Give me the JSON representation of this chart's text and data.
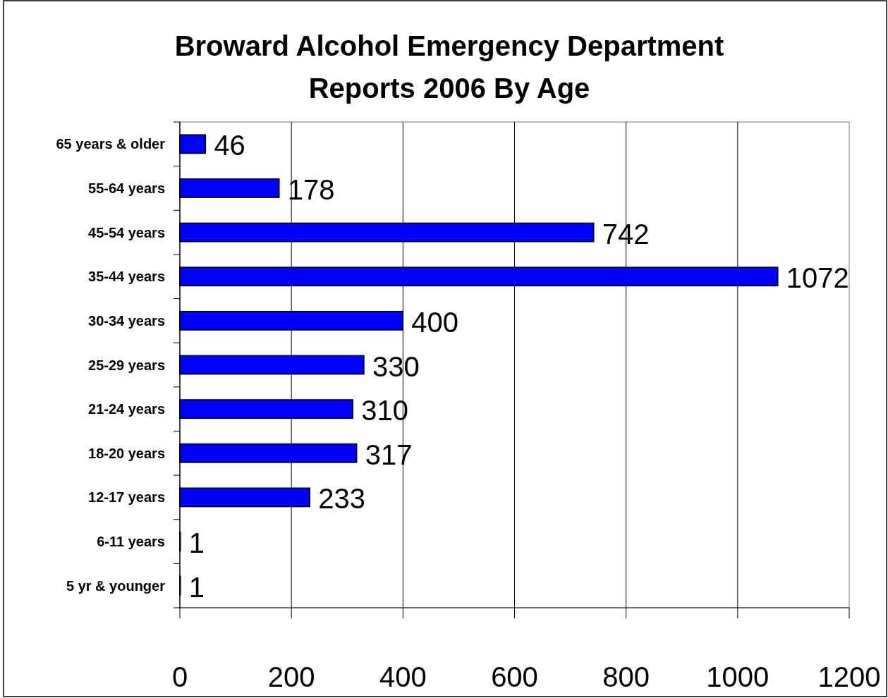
{
  "chart_data": {
    "type": "bar",
    "orientation": "horizontal",
    "title": "Broward Alcohol Emergency Department Reports 2006 By Age",
    "categories": [
      "65 years & older",
      "55-64 years",
      "45-54 years",
      "35-44 years",
      "30-34 years",
      "25-29 years",
      "21-24 years",
      "18-20 years",
      "12-17 years",
      "6-11 years",
      "5 yr & younger"
    ],
    "values": [
      46,
      178,
      742,
      1072,
      400,
      330,
      310,
      317,
      233,
      1,
      1
    ],
    "color": "#0000ff",
    "xlim": [
      0,
      1200
    ],
    "xticks": [
      0,
      200,
      400,
      600,
      800,
      1000,
      1200
    ],
    "grid": "x",
    "data_labels": true
  }
}
